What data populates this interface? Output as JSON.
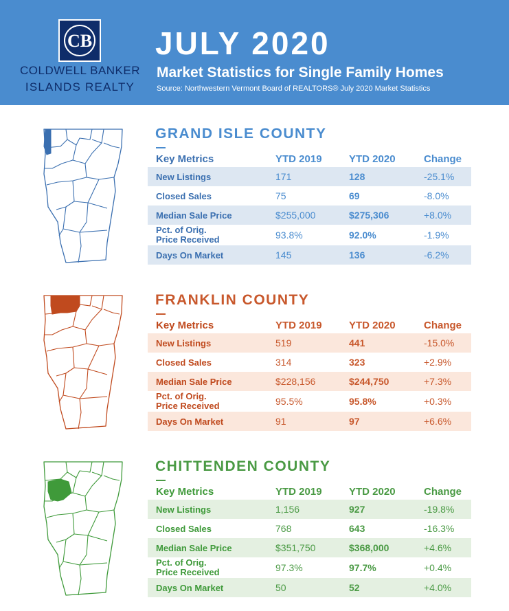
{
  "brand": {
    "monogram": "CB",
    "line1": "COLDWELL BANKER",
    "line2": "ISLANDS REALTY"
  },
  "header": {
    "title": "JULY 2020",
    "subtitle": "Market Statistics for Single Family Homes",
    "source": "Source: Northwestern Vermont Board of REALTORS® July 2020 Market Statistics"
  },
  "colors": {
    "header_bg": "#4a8ccf",
    "brand_navy": "#0f2d6a"
  },
  "table_headers": [
    "Key Metrics",
    "YTD 2019",
    "YTD 2020",
    "Change"
  ],
  "counties": [
    {
      "name": "GRAND ISLE COUNTY",
      "color": "#3a6fb0",
      "text_color": "#4a8ccf",
      "row_bg": "#dde7f2",
      "highlight": "grand-isle",
      "rows": [
        {
          "metric": "New Listings",
          "ytd2019": "171",
          "ytd2020": "128",
          "change": "-25.1%"
        },
        {
          "metric": "Closed Sales",
          "ytd2019": "75",
          "ytd2020": "69",
          "change": "-8.0%"
        },
        {
          "metric": "Median Sale Price",
          "ytd2019": "$255,000",
          "ytd2020": "$275,306",
          "change": "+8.0%"
        },
        {
          "metric": "Pct. of Orig.\nPrice Received",
          "ytd2019": "93.8%",
          "ytd2020": "92.0%",
          "change": "-1.9%"
        },
        {
          "metric": "Days On Market",
          "ytd2019": "145",
          "ytd2020": "136",
          "change": "-6.2%"
        }
      ]
    },
    {
      "name": "FRANKLIN COUNTY",
      "color": "#c04a1e",
      "text_color": "#c8582c",
      "row_bg": "#fbe7dc",
      "highlight": "franklin",
      "rows": [
        {
          "metric": "New Listings",
          "ytd2019": "519",
          "ytd2020": "441",
          "change": "-15.0%"
        },
        {
          "metric": "Closed Sales",
          "ytd2019": "314",
          "ytd2020": "323",
          "change": "+2.9%"
        },
        {
          "metric": "Median Sale Price",
          "ytd2019": "$228,156",
          "ytd2020": "$244,750",
          "change": "+7.3%"
        },
        {
          "metric": "Pct. of Orig.\nPrice Received",
          "ytd2019": "95.5%",
          "ytd2020": "95.8%",
          "change": "+0.3%"
        },
        {
          "metric": "Days On Market",
          "ytd2019": "91",
          "ytd2020": "97",
          "change": "+6.6%"
        }
      ]
    },
    {
      "name": "CHITTENDEN COUNTY",
      "color": "#3f9a3a",
      "text_color": "#4a9a44",
      "row_bg": "#e4f0e1",
      "highlight": "chittenden",
      "rows": [
        {
          "metric": "New Listings",
          "ytd2019": "1,156",
          "ytd2020": "927",
          "change": "-19.8%"
        },
        {
          "metric": "Closed Sales",
          "ytd2019": "768",
          "ytd2020": "643",
          "change": "-16.3%"
        },
        {
          "metric": "Median Sale Price",
          "ytd2019": "$351,750",
          "ytd2020": "$368,000",
          "change": "+4.6%"
        },
        {
          "metric": "Pct. of Orig.\nPrice Received",
          "ytd2019": "97.3%",
          "ytd2020": "97.7%",
          "change": "+0.4%"
        },
        {
          "metric": "Days On Market",
          "ytd2019": "50",
          "ytd2020": "52",
          "change": "+4.0%"
        }
      ]
    }
  ]
}
